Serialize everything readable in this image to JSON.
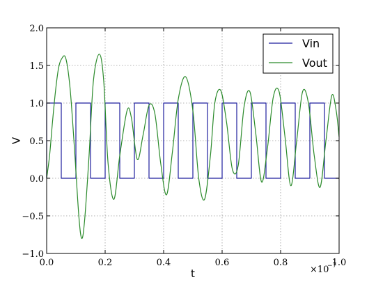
{
  "chart_data": {
    "type": "line",
    "title": "",
    "xlabel": "t",
    "ylabel": "V",
    "x_offset_label": "×10",
    "x_offset_exponent": "−7",
    "xlim": [
      0.0,
      1.0
    ],
    "ylim": [
      -1.0,
      2.0
    ],
    "x_ticks": [
      0.0,
      0.2,
      0.4,
      0.6,
      0.8,
      1.0
    ],
    "x_tick_labels": [
      "0.0",
      "0.2",
      "0.4",
      "0.6",
      "0.8",
      "1.0"
    ],
    "y_ticks": [
      -1.0,
      -0.5,
      0.0,
      0.5,
      1.0,
      1.5,
      2.0
    ],
    "y_tick_labels": [
      "−1.0",
      "−0.5",
      "0.0",
      "0.5",
      "1.0",
      "1.5",
      "2.0"
    ],
    "grid": true,
    "legend_position": "top-right",
    "series": [
      {
        "name": "Vin",
        "color": "#1f1f9e",
        "x": [
          0.0,
          0.0001,
          0.0499,
          0.05,
          0.05,
          0.0499,
          0.1,
          0.1,
          0.1499,
          0.15,
          0.15,
          0.1999,
          0.2,
          0.2,
          0.2499,
          0.25,
          0.25,
          0.2999,
          0.3,
          0.3,
          0.3499,
          0.35,
          0.35,
          0.3999,
          0.4,
          0.4,
          0.4499,
          0.45,
          0.45,
          0.4999,
          0.5,
          0.5,
          0.5499,
          0.55,
          0.55,
          0.5999,
          0.6,
          0.6,
          0.6499,
          0.65,
          0.65,
          0.6999,
          0.7,
          0.7,
          0.7499,
          0.75,
          0.75,
          0.7999,
          0.8,
          0.8,
          0.8499,
          0.85,
          0.85,
          0.8999,
          0.9,
          0.9,
          0.9499,
          0.95,
          0.95,
          0.9999,
          1.0
        ],
        "y": [
          0.0,
          1.0,
          1.0,
          1.0,
          0.0,
          0.0,
          0.0,
          1.0,
          1.0,
          1.0,
          0.0,
          0.0,
          0.0,
          1.0,
          1.0,
          1.0,
          0.0,
          0.0,
          0.0,
          1.0,
          1.0,
          1.0,
          0.0,
          0.0,
          0.0,
          1.0,
          1.0,
          1.0,
          0.0,
          0.0,
          0.0,
          1.0,
          1.0,
          1.0,
          0.0,
          0.0,
          0.0,
          1.0,
          1.0,
          1.0,
          0.0,
          0.0,
          0.0,
          1.0,
          1.0,
          1.0,
          0.0,
          0.0,
          0.0,
          1.0,
          1.0,
          1.0,
          0.0,
          0.0,
          0.0,
          1.0,
          1.0,
          1.0,
          0.0,
          0.0,
          0.0
        ]
      },
      {
        "name": "Vout",
        "color": "#2a8a2a",
        "x": [
          0.0,
          0.01,
          0.02,
          0.03,
          0.04,
          0.05,
          0.065,
          0.08,
          0.095,
          0.11,
          0.12,
          0.13,
          0.145,
          0.16,
          0.18,
          0.195,
          0.21,
          0.23,
          0.25,
          0.275,
          0.29,
          0.31,
          0.33,
          0.35,
          0.37,
          0.39,
          0.41,
          0.43,
          0.45,
          0.475,
          0.5,
          0.52,
          0.54,
          0.56,
          0.575,
          0.595,
          0.615,
          0.635,
          0.655,
          0.675,
          0.695,
          0.715,
          0.735,
          0.755,
          0.775,
          0.795,
          0.815,
          0.835,
          0.855,
          0.875,
          0.895,
          0.915,
          0.935,
          0.955,
          0.975,
          0.99,
          1.0
        ],
        "y": [
          0.0,
          0.3,
          0.75,
          1.15,
          1.45,
          1.58,
          1.6,
          1.2,
          0.4,
          -0.5,
          -0.8,
          -0.55,
          0.3,
          1.3,
          1.65,
          1.3,
          0.2,
          -0.28,
          0.3,
          0.9,
          0.8,
          0.25,
          0.58,
          0.97,
          0.86,
          0.2,
          -0.22,
          0.35,
          1.05,
          1.35,
          0.9,
          0.0,
          -0.28,
          0.3,
          1.0,
          1.17,
          0.75,
          0.12,
          0.17,
          0.95,
          1.15,
          0.6,
          -0.05,
          0.4,
          1.08,
          1.15,
          0.55,
          -0.1,
          0.5,
          1.15,
          1.0,
          0.3,
          -0.12,
          0.5,
          1.1,
          0.9,
          0.55
        ]
      }
    ]
  }
}
